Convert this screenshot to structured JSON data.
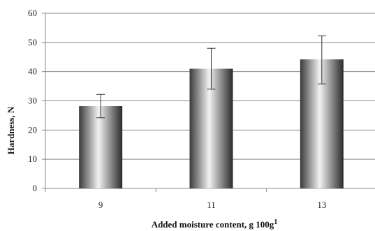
{
  "chart_data": {
    "type": "bar",
    "categories": [
      "9",
      "11",
      "13"
    ],
    "values": [
      28.2,
      41.0,
      44.2
    ],
    "error_low": [
      24.2,
      34.0,
      35.8
    ],
    "error_high": [
      32.2,
      48.0,
      52.3
    ],
    "xlabel": "Added moisture content, g 100g",
    "xlabel_superscript": "1",
    "ylabel": "Hardness, N",
    "ylim": [
      0,
      60
    ],
    "yticks": [
      0,
      10,
      20,
      30,
      40,
      50,
      60
    ],
    "grid": true,
    "bar_gradient": [
      "#3a3a3a",
      "#f2f2f2",
      "#2a2a2a"
    ]
  }
}
